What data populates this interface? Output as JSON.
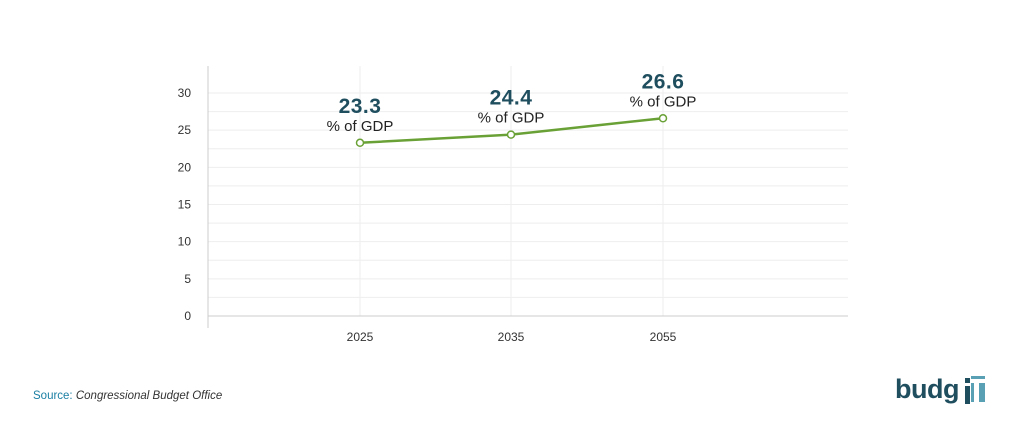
{
  "chart_data": {
    "type": "line",
    "categories": [
      "2025",
      "2035",
      "2055"
    ],
    "values": [
      23.3,
      24.4,
      26.6
    ],
    "value_labels": [
      "23.3",
      "24.4",
      "26.6"
    ],
    "value_unit": "% of GDP",
    "yticks": [
      0,
      5,
      10,
      15,
      20,
      25,
      30
    ],
    "ylim": [
      0,
      30
    ],
    "grid": true,
    "line_color": "#6aa136",
    "label_color": "#1f4e5f"
  },
  "source": {
    "key": "Source:",
    "value": "Congressional Budget Office"
  },
  "logo": {
    "text": "budg",
    "mark_text": "iT"
  }
}
